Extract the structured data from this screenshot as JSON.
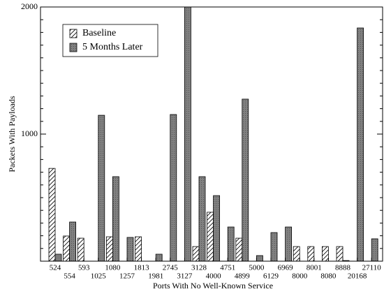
{
  "chart_data": {
    "type": "bar",
    "x_label": "Ports With No Well-Known Service",
    "y_label": "Packets With Payloads",
    "categories": [
      "524",
      "554",
      "593",
      "1025",
      "1080",
      "1257",
      "1813",
      "1981",
      "2745",
      "3127",
      "3128",
      "4000",
      "4751",
      "4899",
      "5000",
      "6129",
      "6969",
      "8000",
      "8001",
      "8080",
      "8888",
      "20168",
      "27110"
    ],
    "series": [
      {
        "name": "Baseline",
        "color": "#000000",
        "pattern": "hatch",
        "values": [
          730,
          198,
          181,
          0,
          192,
          0,
          192,
          0,
          0,
          0,
          115,
          385,
          0,
          181,
          0,
          0,
          0,
          115,
          115,
          115,
          115,
          0,
          0
        ]
      },
      {
        "name": "5 Months Later",
        "color": "#808080",
        "pattern": "stipple",
        "values": [
          55,
          308,
          0,
          1148,
          665,
          187,
          0,
          55,
          1154,
          2000,
          665,
          516,
          269,
          1275,
          44,
          225,
          269,
          0,
          0,
          0,
          5,
          1835,
          176
        ]
      }
    ],
    "ylim": [
      0,
      2000
    ],
    "yticks": [
      1000,
      2000
    ],
    "minor_yticks": [
      100,
      200,
      300,
      400,
      500,
      600,
      700,
      800,
      900,
      1100,
      1200,
      1300,
      1400,
      1500,
      1600,
      1700,
      1800,
      1900
    ],
    "legend": "upper left"
  }
}
